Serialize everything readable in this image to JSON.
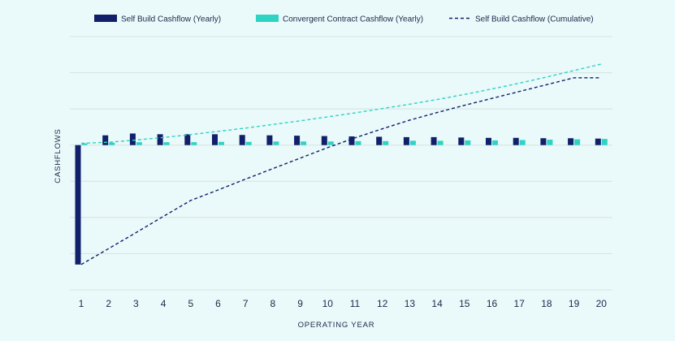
{
  "colors": {
    "background": "#eaf9f9",
    "self_build": "#10206b",
    "convergent": "#2fd3c4",
    "gridline": "#d6e2e2",
    "text": "#1b2a4a"
  },
  "chart_data": {
    "type": "bar",
    "title": "",
    "xlabel": "OPERATING YEAR",
    "ylabel": "CASHFLOWS",
    "categories": [
      "1",
      "2",
      "3",
      "4",
      "5",
      "6",
      "7",
      "8",
      "9",
      "10",
      "11",
      "12",
      "13",
      "14",
      "15",
      "16",
      "17",
      "18",
      "19",
      "20"
    ],
    "ylim": [
      -4,
      3
    ],
    "y_ticks_labeled": false,
    "grid": true,
    "legend_position": "top",
    "series": [
      {
        "name": "Self Build Cashflow (Yearly)",
        "kind": "bar",
        "color": "#10206b",
        "values": [
          -3.3,
          0.27,
          0.32,
          0.3,
          0.3,
          0.3,
          0.28,
          0.27,
          0.26,
          0.25,
          0.24,
          0.23,
          0.22,
          0.22,
          0.21,
          0.2,
          0.2,
          0.19,
          0.19,
          0.18
        ]
      },
      {
        "name": "Convergent Contract Cashflow (Yearly)",
        "kind": "bar",
        "color": "#2fd3c4",
        "values": [
          0.05,
          0.07,
          0.08,
          0.08,
          0.08,
          0.09,
          0.09,
          0.1,
          0.1,
          0.1,
          0.11,
          0.11,
          0.12,
          0.12,
          0.13,
          0.13,
          0.14,
          0.15,
          0.16,
          0.17
        ]
      },
      {
        "name": "Self Build Cashflow (Cumulative)",
        "kind": "line",
        "style": "dashed",
        "color": "#10206b",
        "values": [
          -3.3,
          -2.86,
          -2.42,
          -1.97,
          -1.53,
          -1.24,
          -0.94,
          -0.65,
          -0.36,
          -0.07,
          0.2,
          0.45,
          0.69,
          0.9,
          1.1,
          1.29,
          1.48,
          1.67,
          1.86,
          1.86
        ]
      },
      {
        "name": "Convergent Contract Cashflow (Cumulative)",
        "kind": "line",
        "style": "dashed",
        "color": "#2fd3c4",
        "legend": false,
        "values": [
          0.05,
          0.08,
          0.14,
          0.21,
          0.29,
          0.38,
          0.47,
          0.57,
          0.67,
          0.78,
          0.89,
          1.01,
          1.13,
          1.26,
          1.4,
          1.55,
          1.71,
          1.88,
          2.06,
          2.24
        ]
      }
    ]
  }
}
